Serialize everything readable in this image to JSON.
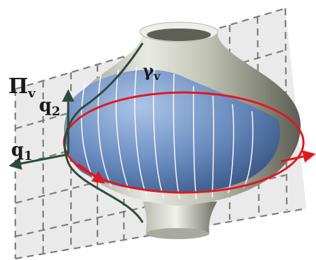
{
  "labels": {
    "plane": {
      "main": "Π",
      "sub": "v"
    },
    "curve": {
      "main": "γ",
      "sub": "v"
    },
    "axis_vertical": {
      "main": "q",
      "sub": "2"
    },
    "axis_horizontal": {
      "main": "q",
      "sub": "1"
    }
  },
  "colors": {
    "surface_gray": "#c8c9bc",
    "patch_blue": "#6b8fc4",
    "orbit_red": "#e4161b",
    "curve_dark": "#2f4a3a",
    "grid_dash": "#7d7d7d"
  },
  "icons": {
    "vector_arrow": "arrow-head"
  }
}
